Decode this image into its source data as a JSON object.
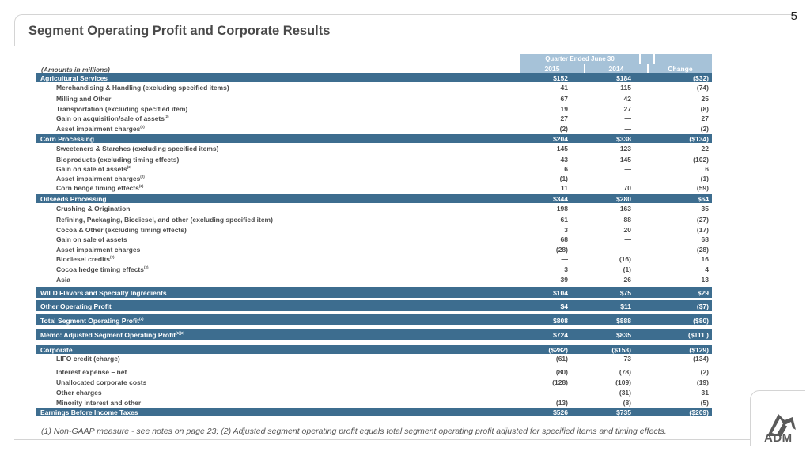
{
  "page_number": "5",
  "title": "Segment Operating Profit and Corporate Results",
  "header": {
    "period_label": "Quarter Ended June 30",
    "units_label": "(Amounts in millions)",
    "col_2015": "2015",
    "col_2014": "2014",
    "col_change": "Change"
  },
  "rows": [
    {
      "type": "band",
      "label": "Agricultural Services",
      "sup": "",
      "v2015": "$152",
      "v2014": "$184",
      "change": "($32)"
    },
    {
      "type": "item",
      "label": "Merchandising & Handling (excluding specified items)",
      "sup": "",
      "v2015": "41",
      "v2014": "115",
      "change": "(74)"
    },
    {
      "type": "item",
      "label": "Milling and Other",
      "sup": "",
      "v2015": "67",
      "v2014": "42",
      "change": "25"
    },
    {
      "type": "item",
      "label": "Transportation (excluding specified item)",
      "sup": "",
      "v2015": "19",
      "v2014": "27",
      "change": "(8)"
    },
    {
      "type": "item",
      "label": "Gain on acquisition/sale of assets",
      "sup": "(2)",
      "v2015": "27",
      "v2014": "—",
      "change": "27"
    },
    {
      "type": "item",
      "label": "Asset impairment charges",
      "sup": "(2)",
      "v2015": "(2)",
      "v2014": "—",
      "change": "(2)"
    },
    {
      "type": "band",
      "label": "Corn Processing",
      "sup": "",
      "v2015": "$204",
      "v2014": "$338",
      "change": "($134)"
    },
    {
      "type": "item",
      "label": "Sweeteners & Starches (excluding specified items)",
      "sup": "",
      "v2015": "145",
      "v2014": "123",
      "change": "22"
    },
    {
      "type": "item",
      "label": "Bioproducts (excluding timing effects)",
      "sup": "",
      "v2015": "43",
      "v2014": "145",
      "change": "(102)"
    },
    {
      "type": "item",
      "label": "Gain on sale of assets",
      "sup": "(2)",
      "v2015": "6",
      "v2014": "—",
      "change": "6"
    },
    {
      "type": "item",
      "label": "Asset impairment charges",
      "sup": "(2)",
      "v2015": "(1)",
      "v2014": "—",
      "change": "(1)"
    },
    {
      "type": "item",
      "label": "Corn hedge timing effects",
      "sup": "(2)",
      "v2015": "11",
      "v2014": "70",
      "change": "(59)"
    },
    {
      "type": "band",
      "label": "Oilseeds Processing",
      "sup": "",
      "v2015": "$344",
      "v2014": "$280",
      "change": "$64"
    },
    {
      "type": "item",
      "label": "Crushing & Origination",
      "sup": "",
      "v2015": "198",
      "v2014": "163",
      "change": "35"
    },
    {
      "type": "item",
      "label": "Refining, Packaging, Biodiesel, and other (excluding specified item)",
      "sup": "",
      "v2015": "61",
      "v2014": "88",
      "change": "(27)"
    },
    {
      "type": "item",
      "label": "Cocoa & Other (excluding timing effects)",
      "sup": "",
      "v2015": "3",
      "v2014": "20",
      "change": "(17)"
    },
    {
      "type": "item",
      "label": "Gain on sale of assets",
      "sup": "",
      "v2015": "68",
      "v2014": "—",
      "change": "68"
    },
    {
      "type": "item",
      "label": "Asset impairment charges",
      "sup": "",
      "v2015": "(28)",
      "v2014": "—",
      "change": "(28)"
    },
    {
      "type": "item",
      "label": "Biodiesel credits",
      "sup": "(2)",
      "v2015": "—",
      "v2014": "(16)",
      "change": "16"
    },
    {
      "type": "item",
      "label": "Cocoa hedge timing effects",
      "sup": "(2)",
      "v2015": "3",
      "v2014": "(1)",
      "change": "4"
    },
    {
      "type": "item",
      "label": "Asia",
      "sup": "",
      "v2015": "39",
      "v2014": "26",
      "change": "13"
    },
    {
      "type": "tall",
      "label": "WILD Flavors and Specialty Ingredients",
      "sup": "",
      "v2015": "$104",
      "v2014": "$75",
      "change": "$29"
    },
    {
      "type": "tall",
      "label": "Other Operating Profit",
      "sup": "",
      "v2015": "$4",
      "v2014": "$11",
      "change": "($7)"
    },
    {
      "type": "tall",
      "label": "Total Segment Operating Profit",
      "sup": "(1)",
      "v2015": "$808",
      "v2014": "$888",
      "change": "($80)"
    },
    {
      "type": "tall",
      "label": "Memo: Adjusted Segment Operating Profit",
      "sup": "(1)(2)",
      "v2015": "$724",
      "v2014": "$835",
      "change": "($111 )"
    },
    {
      "type": "band",
      "label": "Corporate",
      "sup": "",
      "v2015": "($282)",
      "v2014": "($153)",
      "change": "($129)"
    },
    {
      "type": "item",
      "label": "LIFO credit (charge)",
      "sup": "",
      "v2015": "(61)",
      "v2014": "73",
      "change": "(134)"
    },
    {
      "type": "item",
      "label": "Interest expense – net",
      "sup": "",
      "v2015": "(80)",
      "v2014": "(78)",
      "change": "(2)"
    },
    {
      "type": "item",
      "label": "Unallocated corporate costs",
      "sup": "",
      "v2015": "(128)",
      "v2014": "(109)",
      "change": "(19)"
    },
    {
      "type": "item",
      "label": "Other charges",
      "sup": "",
      "v2015": "—",
      "v2014": "(31)",
      "change": "31"
    },
    {
      "type": "item",
      "label": "Minority interest and other",
      "sup": "",
      "v2015": "(13)",
      "v2014": "(8)",
      "change": "(5)"
    },
    {
      "type": "band",
      "label": "Earnings Before Income Taxes",
      "sup": "",
      "v2015": "$526",
      "v2014": "$735",
      "change": "($209)"
    }
  ],
  "footnote": "(1) Non-GAAP measure - see notes on page 23; (2) Adjusted segment operating profit equals total segment operating profit adjusted for specified items and timing effects.",
  "logo_text": "ADM",
  "colors": {
    "band": "#3d6d8f",
    "header": "#a6c2d8"
  }
}
